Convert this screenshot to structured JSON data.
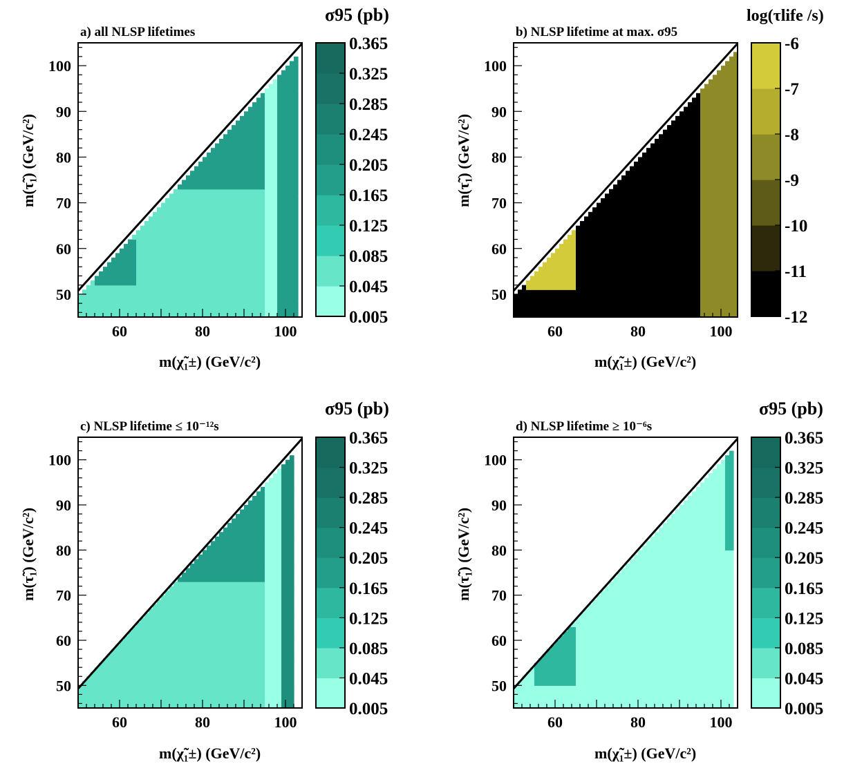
{
  "figure": {
    "cmap_green": [
      "#99ffe5",
      "#66e5c8",
      "#33ccb2",
      "#2eb89f",
      "#239e8a",
      "#1f8f7d",
      "#1c8071",
      "#1a7266",
      "#166a5e"
    ],
    "cmap_log": [
      "#000000",
      "#2c2a0b",
      "#5e5a17",
      "#8f8a28",
      "#b5ad2d",
      "#d4cb3a",
      "#ffee3a"
    ],
    "zcolor": "#000000"
  },
  "chart_data": [
    {
      "type": "heatmap",
      "panel_id": "a",
      "title": "a)  all NLSP lifetimes",
      "xlabel": "m(χ̃₁±)  (GeV/c²)",
      "ylabel": "m(τ̃₁)  (GeV/c²)",
      "xlim": [
        50,
        104
      ],
      "ylim": [
        45,
        105
      ],
      "xticks": [
        60,
        80,
        100
      ],
      "yticks": [
        50,
        60,
        70,
        80,
        90,
        100
      ],
      "colorbar": {
        "label": "σ95 (pb)",
        "ticks": [
          "0.005",
          "0.045",
          "0.085",
          "0.125",
          "0.165",
          "0.205",
          "0.245",
          "0.285",
          "0.325",
          "0.365"
        ],
        "palette": "green"
      },
      "cells_domain": "tau < chargino, chargino 50-104 GeV, tau 45-105 GeV, 1 GeV bins",
      "regions": [
        {
          "desc": "bulk",
          "x": [
            50,
            95
          ],
          "y": [
            45,
            73
          ],
          "value": 0.06
        },
        {
          "desc": "upper band",
          "x": [
            60,
            95
          ],
          "y": [
            73,
            105
          ],
          "value": 0.18
        },
        {
          "desc": "low-mass edge",
          "x": [
            54,
            64
          ],
          "y": [
            52,
            62
          ],
          "value": 0.17
        },
        {
          "desc": "high chargino strip",
          "x": [
            95,
            98
          ],
          "y": [
            45,
            105
          ],
          "value": 0.03
        },
        {
          "desc": "high chargino core",
          "x": [
            98,
            104
          ],
          "y": [
            45,
            105
          ],
          "value": 0.2
        }
      ]
    },
    {
      "type": "heatmap",
      "panel_id": "b",
      "title": "b)  NLSP lifetime at max. σ95",
      "xlabel": "m(χ̃₁±)  (GeV/c²)",
      "ylabel": "m(τ̃₁)  (GeV/c²)",
      "xlim": [
        50,
        104
      ],
      "ylim": [
        45,
        105
      ],
      "xticks": [
        60,
        80,
        100
      ],
      "yticks": [
        50,
        60,
        70,
        80,
        90,
        100
      ],
      "colorbar": {
        "label": "log(τlife /s)",
        "ticks": [
          "-12",
          "-11",
          "-10",
          "-9",
          "-8",
          "-7",
          "-6"
        ],
        "palette": "log"
      },
      "regions": [
        {
          "desc": "bulk",
          "value": -12
        },
        {
          "desc": "low-mass yellow wedge",
          "x": [
            53,
            65
          ],
          "y": [
            51,
            66
          ],
          "value": -6.5
        },
        {
          "desc": "high chargino olive",
          "x": [
            95,
            104
          ],
          "y": [
            45,
            105
          ],
          "value": -8.5
        }
      ]
    },
    {
      "type": "heatmap",
      "panel_id": "c",
      "title": "c)  NLSP lifetime ≤ 10⁻¹²s",
      "xlabel": "m(χ̃₁±)  (GeV/c²)",
      "ylabel": "m(τ̃₁)  (GeV/c²)",
      "xlim": [
        50,
        104
      ],
      "ylim": [
        45,
        105
      ],
      "xticks": [
        60,
        80,
        100
      ],
      "yticks": [
        50,
        60,
        70,
        80,
        90,
        100
      ],
      "colorbar": {
        "label": "σ95 (pb)",
        "ticks": [
          "0.005",
          "0.045",
          "0.085",
          "0.125",
          "0.165",
          "0.205",
          "0.245",
          "0.285",
          "0.325",
          "0.365"
        ],
        "palette": "green"
      },
      "regions": [
        {
          "desc": "bulk",
          "x": [
            50,
            95
          ],
          "y": [
            45,
            73
          ],
          "value": 0.06
        },
        {
          "desc": "upper band",
          "x": [
            66,
            95
          ],
          "y": [
            73,
            105
          ],
          "value": 0.18
        },
        {
          "desc": "high chargino strip",
          "x": [
            95,
            99
          ],
          "y": [
            45,
            105
          ],
          "value": 0.03
        },
        {
          "desc": "high chargino core",
          "x": [
            99,
            102
          ],
          "y": [
            45,
            105
          ],
          "value": 0.22
        }
      ]
    },
    {
      "type": "heatmap",
      "panel_id": "d",
      "title": "d)  NLSP lifetime ≥ 10⁻⁶s",
      "xlabel": "m(χ̃₁±)  (GeV/c²)",
      "ylabel": "m(τ̃₁)  (GeV/c²)",
      "xlim": [
        50,
        104
      ],
      "ylim": [
        45,
        105
      ],
      "xticks": [
        60,
        80,
        100
      ],
      "yticks": [
        50,
        60,
        70,
        80,
        90,
        100
      ],
      "colorbar": {
        "label": "σ95 (pb)",
        "ticks": [
          "0.005",
          "0.045",
          "0.085",
          "0.125",
          "0.165",
          "0.205",
          "0.245",
          "0.285",
          "0.325",
          "0.365"
        ],
        "palette": "green"
      },
      "regions": [
        {
          "desc": "bulk",
          "value": 0.01
        },
        {
          "desc": "low-mass edge",
          "x": [
            55,
            65
          ],
          "y": [
            50,
            63
          ],
          "value": 0.13
        },
        {
          "desc": "high chargino strip",
          "x": [
            94,
            104
          ],
          "y": [
            45,
            105
          ],
          "value": 0.03
        },
        {
          "desc": "high chargino core",
          "x": [
            101,
            104
          ],
          "y": [
            80,
            105
          ],
          "value": 0.13
        }
      ]
    }
  ]
}
